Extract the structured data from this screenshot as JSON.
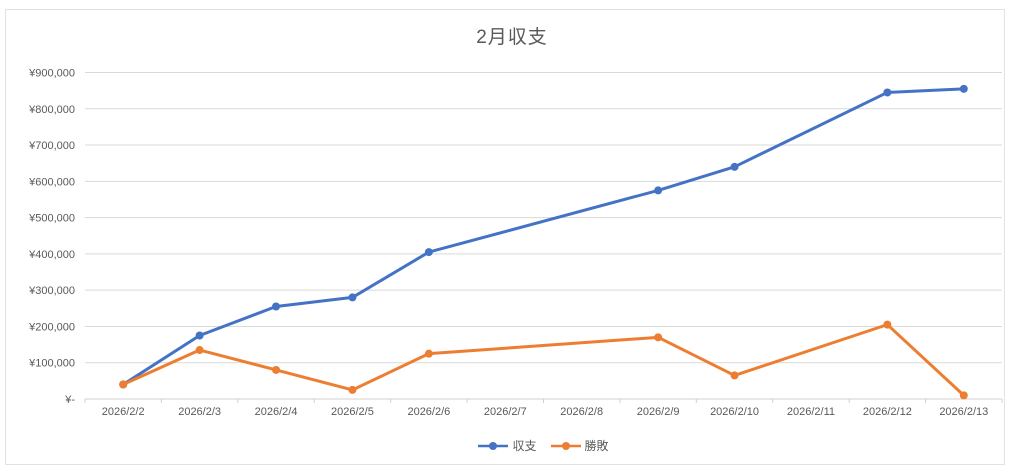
{
  "chart_data": {
    "type": "line",
    "title": "2月収支",
    "categories": [
      "2026/2/2",
      "2026/2/3",
      "2026/2/4",
      "2026/2/5",
      "2026/2/6",
      "2026/2/7",
      "2026/2/8",
      "2026/2/9",
      "2026/2/10",
      "2026/2/11",
      "2026/2/12",
      "2026/2/13"
    ],
    "series": [
      {
        "name": "収支",
        "color": "#4472C4",
        "values": [
          40000,
          175000,
          255000,
          280000,
          405000,
          null,
          null,
          575000,
          640000,
          null,
          845000,
          855000
        ]
      },
      {
        "name": "勝敗",
        "color": "#ED7D31",
        "values": [
          40000,
          135000,
          80000,
          25000,
          125000,
          null,
          null,
          170000,
          65000,
          null,
          205000,
          10000
        ]
      }
    ],
    "y_axis": {
      "min": 0,
      "max": 900000,
      "step": 100000,
      "tick_labels": [
        "¥-",
        "¥100,000",
        "¥200,000",
        "¥300,000",
        "¥400,000",
        "¥500,000",
        "¥600,000",
        "¥700,000",
        "¥800,000",
        "¥900,000"
      ]
    },
    "x_axis": {
      "tick_marks": true
    },
    "legend": {
      "position": "bottom",
      "items": [
        "収支",
        "勝敗"
      ]
    },
    "grid": true,
    "colors": {
      "text": "#595959",
      "grid": "#d9d9d9",
      "axis": "#d0d0d0",
      "border": "#e2e2e2"
    }
  }
}
